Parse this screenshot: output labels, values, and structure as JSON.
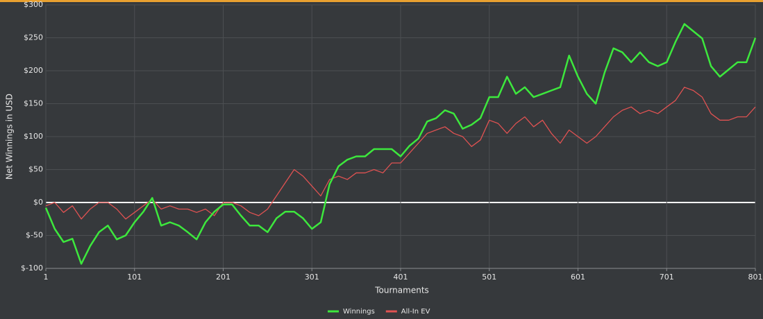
{
  "chart_data": {
    "type": "line",
    "x_label": "Tournaments",
    "y_label": "Net Winnings in USD",
    "x": [
      1,
      11,
      21,
      31,
      41,
      51,
      61,
      71,
      81,
      91,
      101,
      111,
      121,
      131,
      141,
      151,
      161,
      171,
      181,
      191,
      201,
      211,
      221,
      231,
      241,
      251,
      261,
      271,
      281,
      291,
      301,
      311,
      321,
      331,
      341,
      351,
      361,
      371,
      381,
      391,
      401,
      411,
      421,
      431,
      441,
      451,
      461,
      471,
      481,
      491,
      501,
      511,
      521,
      531,
      541,
      551,
      561,
      571,
      581,
      591,
      601,
      611,
      621,
      631,
      641,
      651,
      661,
      671,
      681,
      691,
      701,
      711,
      721,
      731,
      741,
      751,
      761,
      771,
      781,
      791,
      801
    ],
    "series": [
      {
        "name": "Winnings",
        "color": "#3de83d",
        "values": [
          -8,
          -40,
          -60,
          -55,
          -93,
          -66,
          -45,
          -35,
          -56,
          -50,
          -30,
          -14,
          7,
          -35,
          -30,
          -35,
          -45,
          -56,
          -30,
          -14,
          -3,
          -3,
          -20,
          -35,
          -35,
          -45,
          -24,
          -14,
          -14,
          -24,
          -40,
          -30,
          28,
          55,
          65,
          70,
          70,
          81,
          81,
          81,
          70,
          86,
          97,
          123,
          128,
          140,
          135,
          112,
          118,
          128,
          160,
          160,
          191,
          165,
          175,
          160,
          165,
          170,
          175,
          223,
          191,
          165,
          150,
          197,
          234,
          228,
          213,
          228,
          213,
          207,
          213,
          244,
          271,
          260,
          249,
          207,
          191,
          202,
          213,
          213,
          250
        ]
      },
      {
        "name": "All-In EV",
        "color": "#e05252",
        "values": [
          -5,
          0,
          -15,
          -5,
          -25,
          -10,
          0,
          0,
          -10,
          -25,
          -15,
          -5,
          5,
          -10,
          -5,
          -10,
          -10,
          -15,
          -10,
          -20,
          0,
          0,
          -5,
          -15,
          -20,
          -10,
          10,
          30,
          50,
          40,
          25,
          10,
          35,
          40,
          35,
          45,
          45,
          50,
          45,
          60,
          60,
          75,
          90,
          105,
          110,
          115,
          105,
          100,
          85,
          95,
          125,
          120,
          105,
          120,
          130,
          115,
          125,
          105,
          90,
          110,
          100,
          90,
          100,
          115,
          130,
          140,
          145,
          135,
          140,
          135,
          145,
          155,
          175,
          170,
          160,
          135,
          125,
          125,
          130,
          130,
          145
        ]
      }
    ],
    "xlim": [
      1,
      801
    ],
    "xticks": [
      1,
      101,
      201,
      301,
      401,
      501,
      601,
      701,
      801
    ],
    "ylim": [
      -100,
      300
    ],
    "yticks": [
      {
        "value": -100,
        "label": "$-100"
      },
      {
        "value": -50,
        "label": "$-50"
      },
      {
        "value": 0,
        "label": "$0"
      },
      {
        "value": 50,
        "label": "$50"
      },
      {
        "value": 100,
        "label": "$100"
      },
      {
        "value": 150,
        "label": "$150"
      },
      {
        "value": 200,
        "label": "$200"
      },
      {
        "value": 250,
        "label": "$250"
      },
      {
        "value": 300,
        "label": "$300"
      }
    ],
    "grid": true,
    "zero_line": true,
    "legend": "bottom"
  }
}
